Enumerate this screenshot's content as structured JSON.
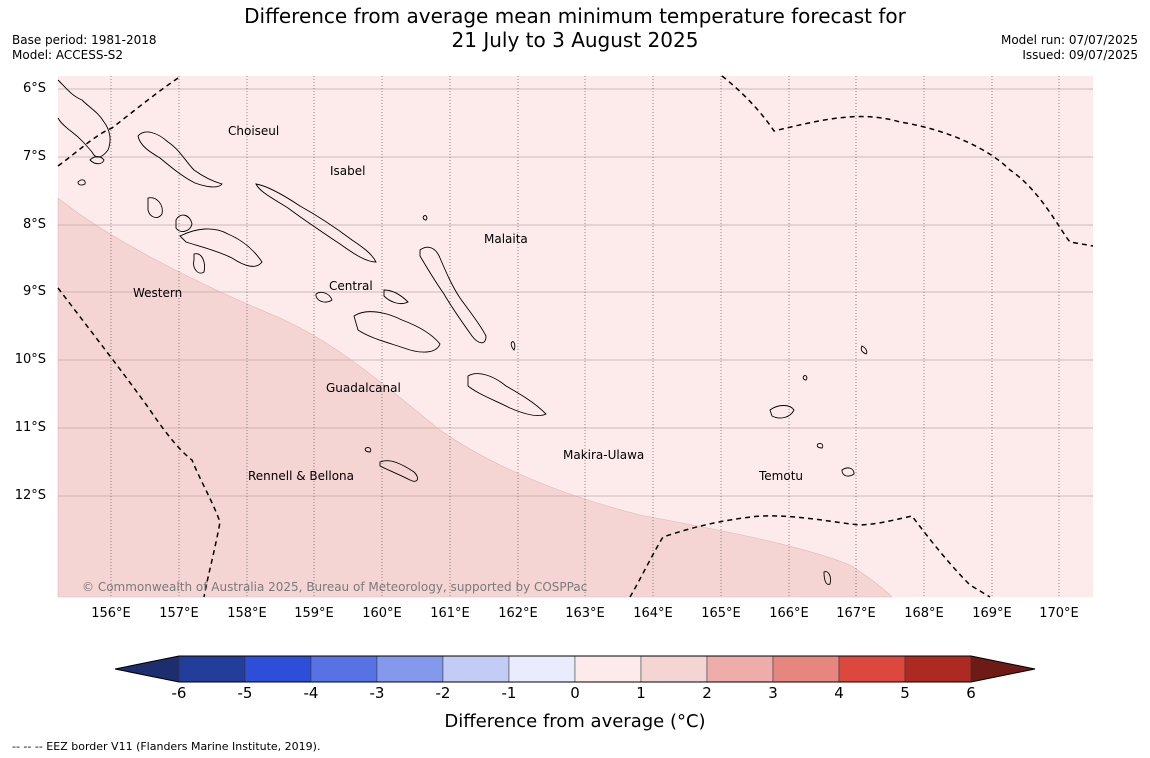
{
  "title": {
    "line1": "Difference from average mean minimum temperature forecast for",
    "line2": "21 July to 3 August 2025"
  },
  "meta_left": {
    "base_period": "Base period: 1981-2018",
    "model": "Model: ACCESS-S2"
  },
  "meta_right": {
    "model_run": "Model run: 07/07/2025",
    "issued": "Issued: 09/07/2025"
  },
  "map": {
    "latitude_labels": [
      "6°S",
      "7°S",
      "8°S",
      "9°S",
      "10°S",
      "11°S",
      "12°S"
    ],
    "longitude_labels": [
      "156°E",
      "157°E",
      "158°E",
      "159°E",
      "160°E",
      "161°E",
      "162°E",
      "163°E",
      "164°E",
      "165°E",
      "166°E",
      "167°E",
      "168°E",
      "169°E",
      "170°E"
    ],
    "regions": [
      "Choiseul",
      "Isabel",
      "Malaita",
      "Western",
      "Central",
      "Guadalcanal",
      "Makira-Ulawa",
      "Rennell & Bellona",
      "Temotu"
    ],
    "fill_colors": {
      "anomaly_0_to_1": "#fcebea",
      "anomaly_1_to_2": "#f5d5d3"
    },
    "copyright": "© Commonwealth of Australia 2025, Bureau of Meteorology, supported by COSPPac"
  },
  "colorbar": {
    "ticks": [
      "-6",
      "-5",
      "-4",
      "-3",
      "-2",
      "-1",
      "0",
      "1",
      "2",
      "3",
      "4",
      "5",
      "6"
    ],
    "colors": [
      "#233e9a",
      "#2d4ed8",
      "#5772e3",
      "#8499ec",
      "#c2ccf5",
      "#e9ecfc",
      "#fcebea",
      "#f5d5d3",
      "#eeacaa",
      "#e7857f",
      "#dc473e",
      "#ad2a22"
    ],
    "under_color": "#1d2e6e",
    "over_color": "#6e1a16",
    "label": "Difference from average (°C)"
  },
  "footnote": "--  --  -- EEZ border V11 (Flanders Marine Institute, 2019)."
}
